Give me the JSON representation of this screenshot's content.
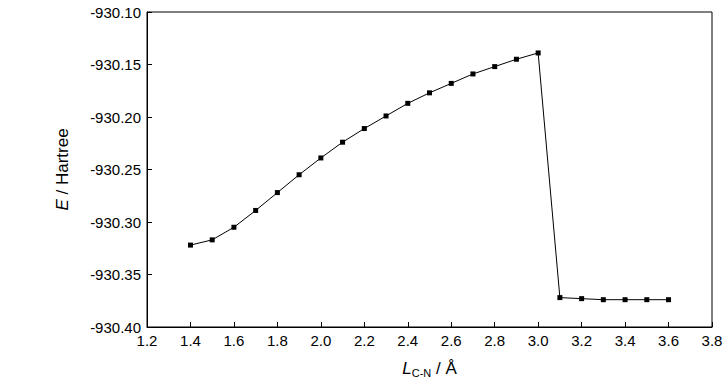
{
  "chart_data": {
    "type": "line",
    "x_label": {
      "symbol": "L",
      "subscript": "C-N",
      "rest": " / Å"
    },
    "y_label": {
      "symbol": "E",
      "rest": " / Hartree"
    },
    "x": [
      1.4,
      1.5,
      1.6,
      1.7,
      1.8,
      1.9,
      2.0,
      2.1,
      2.2,
      2.3,
      2.4,
      2.5,
      2.6,
      2.7,
      2.8,
      2.9,
      3.0,
      3.1,
      3.2,
      3.3,
      3.4,
      3.5,
      3.6
    ],
    "values": [
      -930.322,
      -930.317,
      -930.305,
      -930.289,
      -930.272,
      -930.255,
      -930.239,
      -930.224,
      -930.211,
      -930.199,
      -930.187,
      -930.177,
      -930.168,
      -930.159,
      -930.152,
      -930.145,
      -930.139,
      -930.372,
      -930.373,
      -930.374,
      -930.374,
      -930.374,
      -930.374
    ],
    "color": "#000000",
    "marker": "square",
    "line_style": "solid",
    "grid": false,
    "xlim": [
      1.2,
      3.8
    ],
    "xticks": [
      1.2,
      1.4,
      1.6,
      1.8,
      {
        "value": 2,
        "label": "2.0"
      },
      2.2,
      2.4,
      2.6,
      2.8,
      {
        "value": 3,
        "label": "3.0"
      },
      3.2,
      3.4,
      3.6,
      3.8
    ],
    "ylim": [
      -930.4,
      -930.1
    ],
    "yticks": [
      {
        "value": -930.4,
        "label": "-930.40"
      },
      -930.35,
      {
        "value": -930.3,
        "label": "-930.30"
      },
      -930.25,
      {
        "value": -930.2,
        "label": "-930.20"
      },
      -930.15,
      {
        "value": -930.1,
        "label": "-930.10"
      }
    ]
  }
}
